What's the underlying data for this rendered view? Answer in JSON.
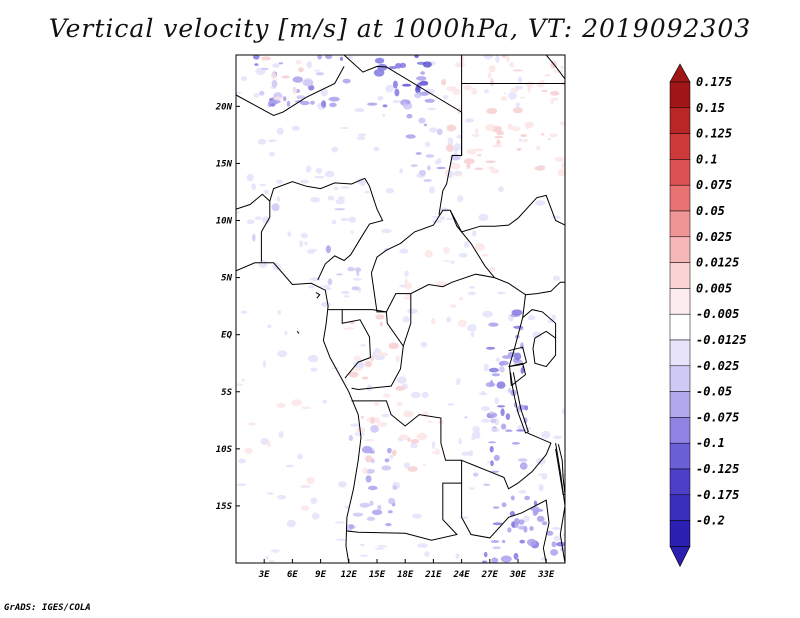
{
  "chart_data": {
    "type": "heatmap",
    "title": "Vertical velocity [m/s] at 1000hPa, VT: 2019092303",
    "variable": "Vertical velocity",
    "units": "m/s",
    "level": "1000hPa",
    "valid_time": "2019092303",
    "xlim": [
      0,
      35
    ],
    "ylim": [
      -20,
      24.5
    ],
    "x_ticks": [
      3,
      6,
      9,
      12,
      15,
      18,
      21,
      24,
      27,
      30,
      33
    ],
    "x_tick_labels": [
      "3E",
      "6E",
      "9E",
      "12E",
      "15E",
      "18E",
      "21E",
      "24E",
      "27E",
      "30E",
      "33E"
    ],
    "y_ticks": [
      20,
      15,
      10,
      5,
      0,
      -5,
      -10,
      -15
    ],
    "y_tick_labels": [
      "20N",
      "15N",
      "10N",
      "5N",
      "EQ",
      "5S",
      "10S",
      "15S"
    ],
    "colorbar": {
      "levels": [
        "0.175",
        "0.15",
        "0.125",
        "0.1",
        "0.075",
        "0.05",
        "0.025",
        "0.0125",
        "0.005",
        "-0.005",
        "-0.0125",
        "-0.025",
        "-0.05",
        "-0.075",
        "-0.1",
        "-0.125",
        "-0.175",
        "-0.2"
      ],
      "colors": [
        "#f0e6ec",
        "#e3d4f0",
        "#c9b3ee",
        "#a98fe6",
        "#8c73dd",
        "#6f5ad4",
        "#5040c8",
        "#3d30be",
        "#2a1fb0",
        "#ffffff",
        "#fbe3e4",
        "#f6c8ca",
        "#f0a4a6",
        "#e57f80",
        "#d85c5c",
        "#c63b3b",
        "#b32424",
        "#a01414",
        "#8a0a0a"
      ],
      "bottom_extend_color": "#2a1fb0",
      "top_extend_color": "#a11616"
    },
    "legend_position": "right",
    "grid": false,
    "dominant_pattern": "weak negative (blue) values widespread over land; strongest negative along Sahel/northern Chad highlands and East African Rift lakes; scattered weak positive (pink) cells over Congo basin, Sudan and northeast"
  },
  "credit": "GrADS: IGES/COLA"
}
